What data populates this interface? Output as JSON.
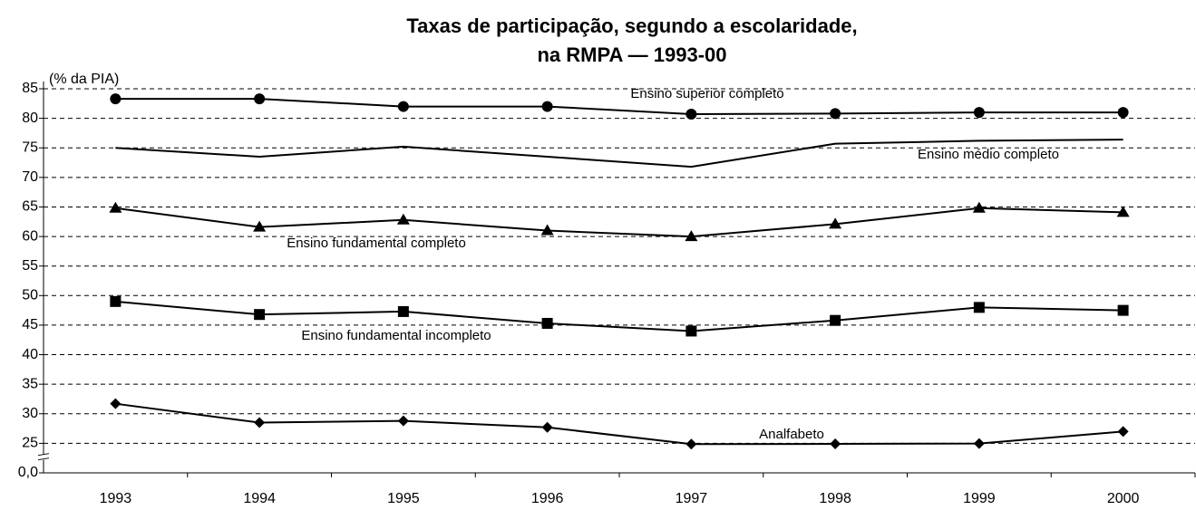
{
  "chart_data": {
    "type": "line",
    "title": [
      "Taxas de participação, segundo a escolaridade,",
      "na RMPA — 1993-00"
    ],
    "y_label": "(% da PIA)",
    "categories": [
      "1993",
      "1994",
      "1995",
      "1996",
      "1997",
      "1998",
      "1999",
      "2000"
    ],
    "series": [
      {
        "name": "Ensino superior completo",
        "color": "#000000",
        "marker": "circle",
        "values": [
          83.3,
          83.3,
          82.0,
          82.0,
          80.7,
          80.8,
          81.0,
          81.0
        ]
      },
      {
        "name": "Ensino médio completo",
        "color": "#000000",
        "marker": "none",
        "values": [
          75.0,
          73.5,
          75.2,
          73.5,
          71.8,
          75.7,
          76.2,
          76.4
        ]
      },
      {
        "name": "Ensino fundamental completo",
        "color": "#000000",
        "marker": "triangle",
        "values": [
          64.8,
          61.6,
          62.8,
          61.0,
          60.0,
          62.1,
          64.8,
          64.1
        ]
      },
      {
        "name": "Ensino fundamental incompleto",
        "color": "#000000",
        "marker": "square",
        "values": [
          49.0,
          46.8,
          47.3,
          45.3,
          44.0,
          45.8,
          48.0,
          47.5
        ]
      },
      {
        "name": "Analfabeto",
        "color": "#000000",
        "marker": "diamond",
        "values": [
          31.7,
          28.5,
          28.8,
          27.7,
          24.3,
          24.5,
          24.8,
          27.0
        ]
      }
    ],
    "ylim": [
      0,
      85
    ],
    "yticks": [
      {
        "value": 0,
        "label": "0,0"
      },
      25,
      30,
      35,
      40,
      45,
      50,
      55,
      60,
      65,
      70,
      75,
      80,
      85
    ],
    "y_axis_break": true,
    "grid": true
  }
}
